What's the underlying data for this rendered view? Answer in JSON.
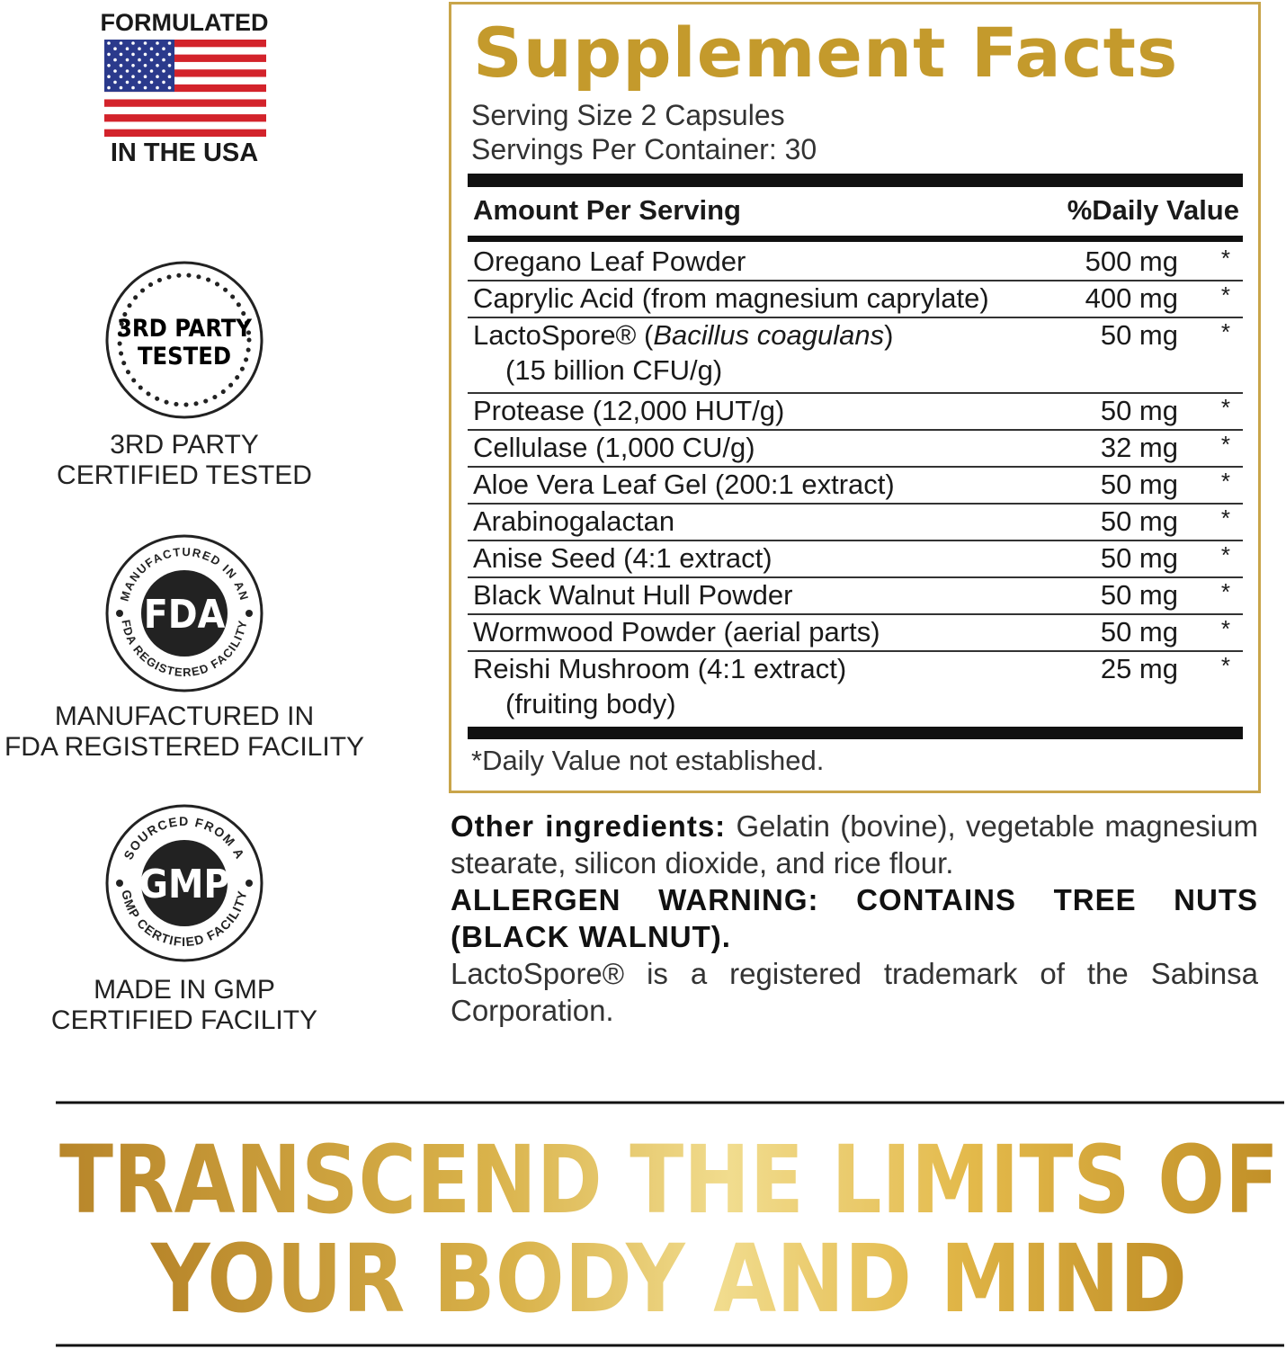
{
  "flag_badge": {
    "top": "FORMULATED",
    "bottom": "IN THE USA"
  },
  "third_party": {
    "seal_lines": [
      "3RD PARTY",
      "TESTED"
    ],
    "caption_lines": [
      "3RD PARTY",
      "CERTIFIED TESTED"
    ]
  },
  "fda": {
    "seal": "FDA",
    "ring_top": "MANUFACTURED IN AN",
    "ring_bottom": "FDA REGISTERED FACILITY",
    "caption_lines": [
      "MANUFACTURED IN",
      "FDA REGISTERED FACILITY"
    ]
  },
  "gmp": {
    "seal": "GMP",
    "ring_top": "SOURCED FROM A",
    "ring_bottom": "GMP CERTIFIED FACILITY",
    "caption_lines": [
      "MADE IN GMP",
      "CERTIFIED FACILITY"
    ]
  },
  "facts": {
    "title": "Supplement Facts",
    "serving_size": "Serving Size 2 Capsules",
    "servings_per_container": "Servings Per Container: 30",
    "header": {
      "amount": "Amount Per Serving",
      "daily_value": "%Daily Value"
    },
    "rows": [
      {
        "name": "Oregano Leaf Powder",
        "amount": "500 mg",
        "dv": "*"
      },
      {
        "name": "Caprylic Acid (from magnesium caprylate)",
        "amount": "400 mg",
        "dv": "*"
      },
      {
        "name_parts": [
          {
            "text": "LactoSpore® ("
          },
          {
            "text": "Bacillus coagulans",
            "italic": true
          },
          {
            "text": ")"
          }
        ],
        "sub": "(15 billion CFU/g)",
        "amount": "50 mg",
        "dv": "*"
      },
      {
        "name": "Protease (12,000 HUT/g)",
        "amount": "50 mg",
        "dv": "*"
      },
      {
        "name": "Cellulase (1,000 CU/g)",
        "amount": "32 mg",
        "dv": "*"
      },
      {
        "name": "Aloe Vera Leaf Gel (200:1 extract)",
        "amount": "50 mg",
        "dv": "*"
      },
      {
        "name": "Arabinogalactan",
        "amount": "50 mg",
        "dv": "*"
      },
      {
        "name": "Anise Seed (4:1 extract)",
        "amount": "50 mg",
        "dv": "*"
      },
      {
        "name": "Black Walnut Hull Powder",
        "amount": "50 mg",
        "dv": "*"
      },
      {
        "name": "Wormwood Powder (aerial parts)",
        "amount": "50 mg",
        "dv": "*"
      },
      {
        "name": "Reishi Mushroom (4:1 extract)",
        "sub": "(fruiting body)",
        "amount": "25 mg",
        "dv": "*"
      }
    ],
    "footnote": "*Daily Value not established."
  },
  "notes": {
    "other_label": "Other ingredients:",
    "other_text": "Gelatin (bovine), vegetable magnesium stearate, silicon dioxide, and rice flour.",
    "allergen": "ALLERGEN WARNING: CONTAINS TREE NUTS (BLACK WALNUT).",
    "trademark": "LactoSpore® is a registered trademark of the Sabinsa Corporation."
  },
  "tagline": {
    "lines": [
      "TRANSCEND THE LIMITS OF",
      "YOUR BODY AND MIND"
    ]
  }
}
